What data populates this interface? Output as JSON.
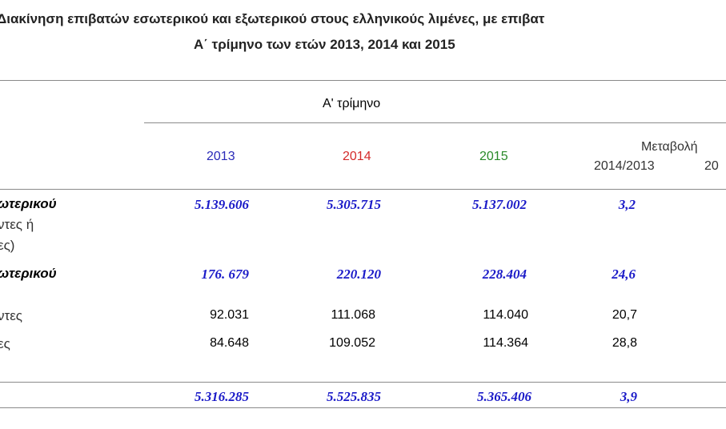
{
  "title": {
    "line1": "Διακίνηση επιβατών εσωτερικού και εξωτερικού στους ελληνικούς λιμένες, με επιβατ",
    "line2": "Α΄ τρίμηνο των ετών  2013, 2014 και 2015"
  },
  "header": {
    "group": "Α' τρίμηνο",
    "years": [
      "2013",
      "2014",
      "2015"
    ],
    "change_label": "Μεταβολή",
    "change_sub": [
      "2014/2013",
      "20"
    ],
    "colors": {
      "y2013": "#2a2ab8",
      "y2014": "#d42a2a",
      "y2015": "#2a8a2a",
      "value_blue": "#1a1ac8"
    }
  },
  "rows": [
    {
      "label": [
        "ωτερικού",
        "ντες ή",
        "ες)"
      ],
      "v2013": "5.139.606",
      "v2014": "5.305.715",
      "v2015": "5.137.002",
      "chg": "3,2"
    },
    {
      "label": [
        "ωτερικού"
      ],
      "v2013": "176. 679",
      "v2014": "220.120",
      "v2015": "228.404",
      "chg": "24,6"
    },
    {
      "label": [
        "ντες"
      ],
      "v2013": "92.031",
      "v2014": "111.068",
      "v2015": "114.040",
      "chg": "20,7"
    },
    {
      "label": [
        "ες"
      ],
      "v2013": "84.648",
      "v2014": "109.052",
      "v2015": "114.364",
      "chg": "28,8"
    },
    {
      "label": [
        ""
      ],
      "v2013": "5.316.285",
      "v2014": "5.525.835",
      "v2015": "5.365.406",
      "chg": "3,9"
    }
  ]
}
